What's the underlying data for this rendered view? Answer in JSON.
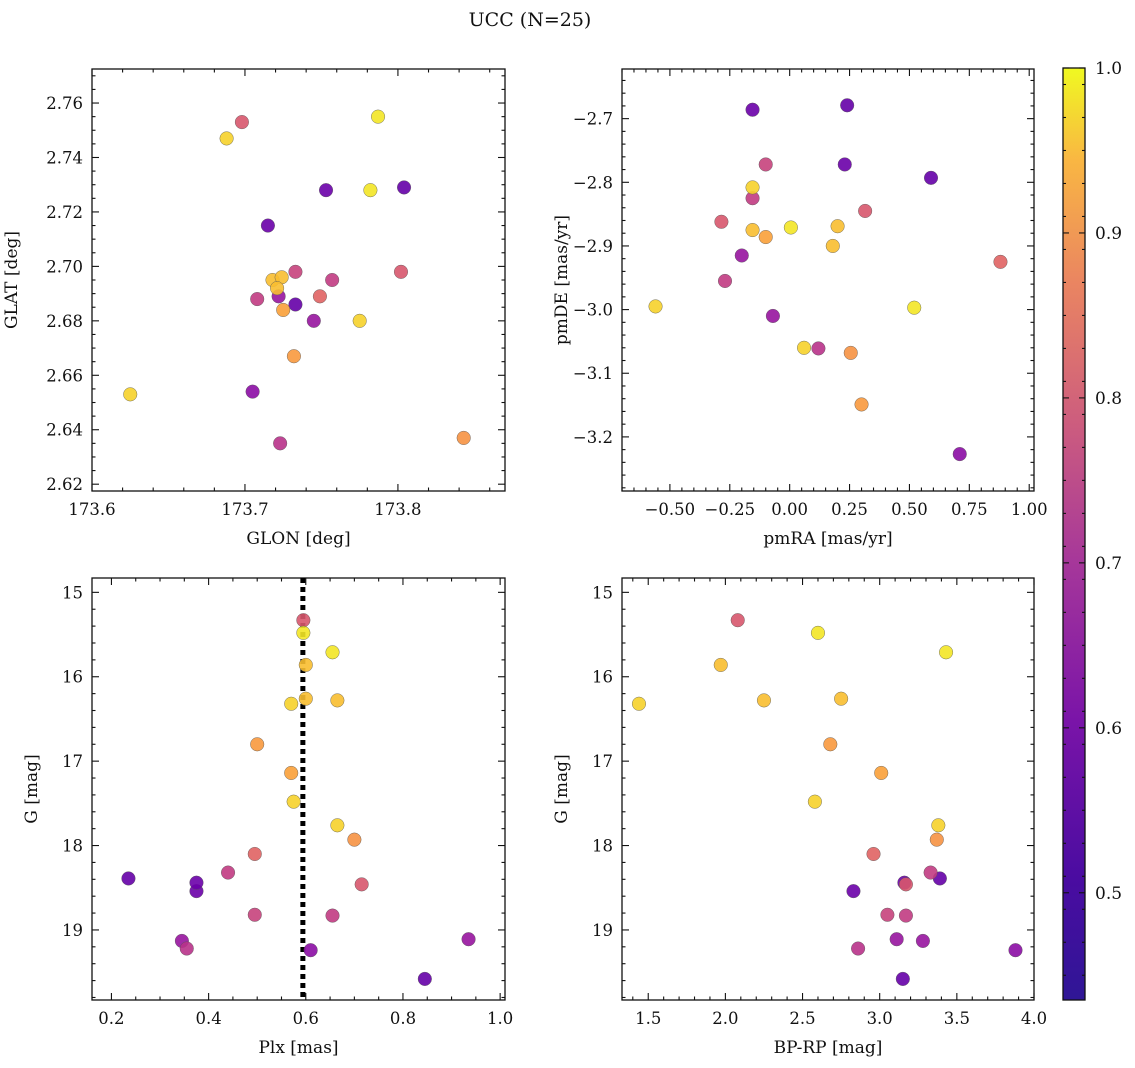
{
  "chart_data": {
    "title": "UCC (N=25)",
    "colorbar": {
      "range": [
        0.435,
        1.0
      ],
      "colormap": "plasma",
      "ticks": [
        0.5,
        0.6,
        0.7,
        0.8,
        0.9,
        1.0
      ],
      "tick_labels": [
        "0.5",
        "0.6",
        "0.7",
        "0.8",
        "0.9",
        "1.0"
      ]
    },
    "stars": [
      {
        "glon": 173.625,
        "glat": 2.653,
        "pmra": -0.56,
        "pmde": -2.995,
        "plx": 0.57,
        "g": 16.32,
        "bprp": 1.44,
        "p": 0.98
      },
      {
        "glon": 173.688,
        "glat": 2.747,
        "pmra": -0.155,
        "pmde": -2.808,
        "plx": 0.575,
        "g": 17.48,
        "bprp": 2.58,
        "p": 0.98
      },
      {
        "glon": 173.698,
        "glat": 2.753,
        "pmra": -0.285,
        "pmde": -2.862,
        "plx": 0.595,
        "g": 15.33,
        "bprp": 2.08,
        "p": 0.78
      },
      {
        "glon": 173.787,
        "glat": 2.755,
        "pmra": 0.52,
        "pmde": -2.997,
        "plx": 0.655,
        "g": 15.71,
        "bprp": 3.43,
        "p": 0.99
      },
      {
        "glon": 173.753,
        "glat": 2.728,
        "pmra": 0.23,
        "pmde": -2.772,
        "plx": 0.375,
        "g": 18.54,
        "bprp": 2.83,
        "p": 0.47
      },
      {
        "glon": 173.804,
        "glat": 2.729,
        "pmra": 0.59,
        "pmde": -2.793,
        "plx": 0.235,
        "g": 18.39,
        "bprp": 3.39,
        "p": 0.46
      },
      {
        "glon": 173.782,
        "glat": 2.728,
        "pmra": 0.005,
        "pmde": -2.871,
        "plx": 0.595,
        "g": 15.48,
        "bprp": 2.6,
        "p": 0.99
      },
      {
        "glon": 173.715,
        "glat": 2.715,
        "pmra": -0.155,
        "pmde": -2.686,
        "plx": 0.375,
        "g": 18.44,
        "bprp": 3.16,
        "p": 0.47
      },
      {
        "glon": 173.733,
        "glat": 2.698,
        "pmra": -0.1,
        "pmde": -2.772,
        "plx": 0.495,
        "g": 18.82,
        "bprp": 3.05,
        "p": 0.72
      },
      {
        "glon": 173.802,
        "glat": 2.698,
        "pmra": 0.315,
        "pmde": -2.845,
        "plx": 0.715,
        "g": 18.46,
        "bprp": 3.17,
        "p": 0.78
      },
      {
        "glon": 173.757,
        "glat": 2.695,
        "pmra": -0.155,
        "pmde": -2.825,
        "plx": 0.655,
        "g": 18.83,
        "bprp": 3.17,
        "p": 0.7
      },
      {
        "glon": 173.718,
        "glat": 2.695,
        "pmra": 0.2,
        "pmde": -2.869,
        "plx": 0.6,
        "g": 16.26,
        "bprp": 2.75,
        "p": 0.97
      },
      {
        "glon": 173.724,
        "glat": 2.696,
        "pmra": -0.155,
        "pmde": -2.875,
        "plx": 0.6,
        "g": 15.86,
        "bprp": 1.97,
        "p": 0.97
      },
      {
        "glon": 173.721,
        "glat": 2.692,
        "pmra": 0.18,
        "pmde": -2.9,
        "plx": 0.665,
        "g": 16.28,
        "bprp": 2.25,
        "p": 0.97
      },
      {
        "glon": 173.749,
        "glat": 2.689,
        "pmra": 0.88,
        "pmde": -2.925,
        "plx": 0.495,
        "g": 18.1,
        "bprp": 2.96,
        "p": 0.82
      },
      {
        "glon": 173.708,
        "glat": 2.688,
        "pmra": -0.27,
        "pmde": -2.955,
        "plx": 0.44,
        "g": 18.32,
        "bprp": 3.33,
        "p": 0.7
      },
      {
        "glon": 173.722,
        "glat": 2.689,
        "pmra": -0.2,
        "pmde": -2.915,
        "plx": 0.345,
        "g": 19.13,
        "bprp": 3.28,
        "p": 0.58
      },
      {
        "glon": 173.733,
        "glat": 2.686,
        "pmra": 0.24,
        "pmde": -2.679,
        "plx": 0.845,
        "g": 19.58,
        "bprp": 3.15,
        "p": 0.46
      },
      {
        "glon": 173.725,
        "glat": 2.684,
        "pmra": -0.1,
        "pmde": -2.886,
        "plx": 0.57,
        "g": 17.14,
        "bprp": 3.01,
        "p": 0.95
      },
      {
        "glon": 173.745,
        "glat": 2.68,
        "pmra": -0.07,
        "pmde": -3.01,
        "plx": 0.935,
        "g": 19.11,
        "bprp": 3.11,
        "p": 0.58
      },
      {
        "glon": 173.775,
        "glat": 2.68,
        "pmra": 0.06,
        "pmde": -3.06,
        "plx": 0.665,
        "g": 17.76,
        "bprp": 3.38,
        "p": 0.98
      },
      {
        "glon": 173.732,
        "glat": 2.667,
        "pmra": 0.3,
        "pmde": -3.149,
        "plx": 0.5,
        "g": 16.8,
        "bprp": 2.68,
        "p": 0.94
      },
      {
        "glon": 173.705,
        "glat": 2.654,
        "pmra": 0.71,
        "pmde": -3.227,
        "plx": 0.61,
        "g": 19.24,
        "bprp": 3.88,
        "p": 0.55
      },
      {
        "glon": 173.723,
        "glat": 2.635,
        "pmra": 0.12,
        "pmde": -3.061,
        "plx": 0.355,
        "g": 19.22,
        "bprp": 2.86,
        "p": 0.67
      },
      {
        "glon": 173.843,
        "glat": 2.637,
        "pmra": 0.255,
        "pmde": -3.068,
        "plx": 0.7,
        "g": 17.93,
        "bprp": 3.37,
        "p": 0.93
      }
    ],
    "panels": [
      {
        "id": "glon-glat",
        "type": "scatter",
        "x_field": "glon",
        "y_field": "glat",
        "xlabel": "GLON [deg]",
        "ylabel": "GLAT [deg]",
        "xlim": [
          173.6,
          173.87
        ],
        "ylim": [
          2.6175,
          2.7725
        ],
        "y_inverted": false,
        "x_major_ticks": [
          173.6,
          173.7,
          173.8
        ],
        "x_tick_labels": [
          "173.6",
          "173.7",
          "173.8"
        ],
        "x_minor_step": 0.02,
        "y_major_ticks": [
          2.62,
          2.64,
          2.66,
          2.68,
          2.7,
          2.72,
          2.74,
          2.76
        ],
        "y_tick_labels": [
          "2.62",
          "2.64",
          "2.66",
          "2.68",
          "2.70",
          "2.72",
          "2.74",
          "2.76"
        ],
        "y_minor_step": 0.005
      },
      {
        "id": "pmra-pmde",
        "type": "scatter",
        "x_field": "pmra",
        "y_field": "pmde",
        "xlabel": "pmRA [mas/yr]",
        "ylabel": "pmDE [mas/yr]",
        "xlim": [
          -0.7,
          1.02
        ],
        "ylim": [
          -3.285,
          -2.622
        ],
        "y_inverted": false,
        "x_major_ticks": [
          -0.5,
          -0.25,
          0.0,
          0.25,
          0.5,
          0.75,
          1.0
        ],
        "x_tick_labels": [
          "−0.50",
          "−0.25",
          "0.00",
          "0.25",
          "0.50",
          "0.75",
          "1.00"
        ],
        "x_minor_step": 0.05,
        "y_major_ticks": [
          -3.2,
          -3.1,
          -3.0,
          -2.9,
          -2.8,
          -2.7
        ],
        "y_tick_labels": [
          "−3.2",
          "−3.1",
          "−3.0",
          "−2.9",
          "−2.8",
          "−2.7"
        ],
        "y_minor_step": 0.02
      },
      {
        "id": "plx-g",
        "type": "scatter",
        "x_field": "plx",
        "y_field": "g",
        "xlabel": "Plx [mas]",
        "ylabel": "G [mag]",
        "xlim": [
          0.16,
          1.01
        ],
        "ylim": [
          14.83,
          19.83
        ],
        "y_inverted": true,
        "x_major_ticks": [
          0.2,
          0.4,
          0.6,
          0.8,
          1.0
        ],
        "x_tick_labels": [
          "0.2",
          "0.4",
          "0.6",
          "0.8",
          "1.0"
        ],
        "x_minor_step": 0.05,
        "y_major_ticks": [
          15,
          16,
          17,
          18,
          19
        ],
        "y_tick_labels": [
          "15",
          "16",
          "17",
          "18",
          "19"
        ],
        "y_minor_step": 0.2,
        "vline": {
          "x": 0.594,
          "style": "dotted"
        }
      },
      {
        "id": "bprp-g",
        "type": "scatter",
        "x_field": "bprp",
        "y_field": "g",
        "xlabel": "BP-RP [mag]",
        "ylabel": "G [mag]",
        "xlim": [
          1.33,
          4.0
        ],
        "ylim": [
          14.83,
          19.83
        ],
        "y_inverted": true,
        "x_major_ticks": [
          1.5,
          2.0,
          2.5,
          3.0,
          3.5,
          4.0
        ],
        "x_tick_labels": [
          "1.5",
          "2.0",
          "2.5",
          "3.0",
          "3.5",
          "4.0"
        ],
        "x_minor_step": 0.1,
        "y_major_ticks": [
          15,
          16,
          17,
          18,
          19
        ],
        "y_tick_labels": [
          "15",
          "16",
          "17",
          "18",
          "19"
        ],
        "y_minor_step": 0.2
      }
    ]
  }
}
